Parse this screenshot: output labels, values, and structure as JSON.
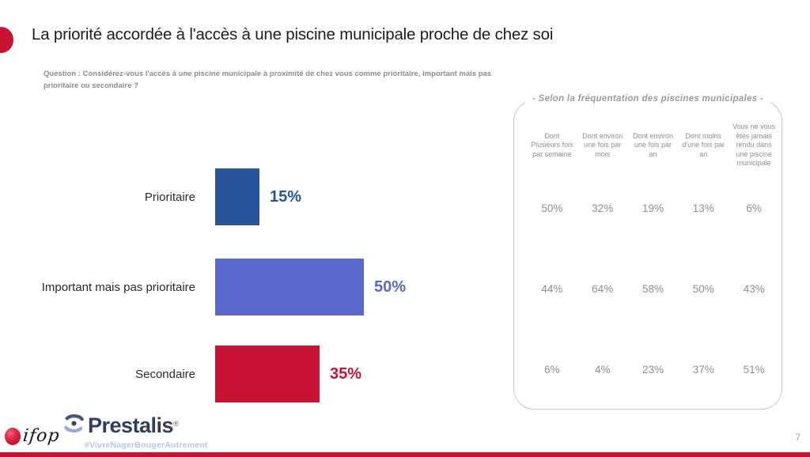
{
  "header": {
    "title": "La priorité accordée à l'accès à une piscine municipale proche de chez soi",
    "question_lines": [
      "Question : Considérez-vous l'accès à une piscine municipale à proximité de chez vous comme prioritaire, important mais pas",
      "prioritaire ou secondaire ?"
    ]
  },
  "chart_data": {
    "type": "bar",
    "orientation": "horizontal",
    "title": "La priorité accordée à l'accès à une piscine municipale proche de chez soi",
    "categories": [
      "Prioritaire",
      "Important mais pas prioritaire",
      "Secondaire"
    ],
    "values": [
      15,
      50,
      35
    ],
    "value_labels": [
      "15%",
      "50%",
      "35%"
    ],
    "unit": "%",
    "xlim": [
      0,
      100
    ],
    "grid": false,
    "legend": "none",
    "bar_colors": [
      "#29549A",
      "#5A67CD",
      "#C81334"
    ]
  },
  "breakdown_panel": {
    "title": "- Selon la fréquentation des piscines municipales -",
    "columns": [
      "Dont Plusieurs fois par semaine",
      "Dont environ une fois par mois",
      "Dont environ une fois par an",
      "Dont moins d'une fois par an",
      "Vous ne vous êtes jamais rendu dans une piscine municipale"
    ],
    "rows": [
      {
        "category": "Prioritaire",
        "values": [
          "50%",
          "32%",
          "19%",
          "13%",
          "6%"
        ]
      },
      {
        "category": "Important mais pas prioritaire",
        "values": [
          "44%",
          "64%",
          "58%",
          "50%",
          "43%"
        ]
      },
      {
        "category": "Secondaire",
        "values": [
          "6%",
          "4%",
          "23%",
          "37%",
          "51%"
        ]
      }
    ]
  },
  "footer": {
    "ifop_logo_text": "ifop",
    "prestalis_logo_text": "Prestalis",
    "registered_mark": "®",
    "hashtag": "#VivreNagerBougerAutrement",
    "page_number": "7"
  },
  "colors": {
    "accent_red": "#C81334",
    "bar_blue_dark": "#29549A",
    "bar_periwinkle": "#5A67CD",
    "panel_border": "#C6C6C6",
    "panel_text": "#8E8E8E"
  }
}
